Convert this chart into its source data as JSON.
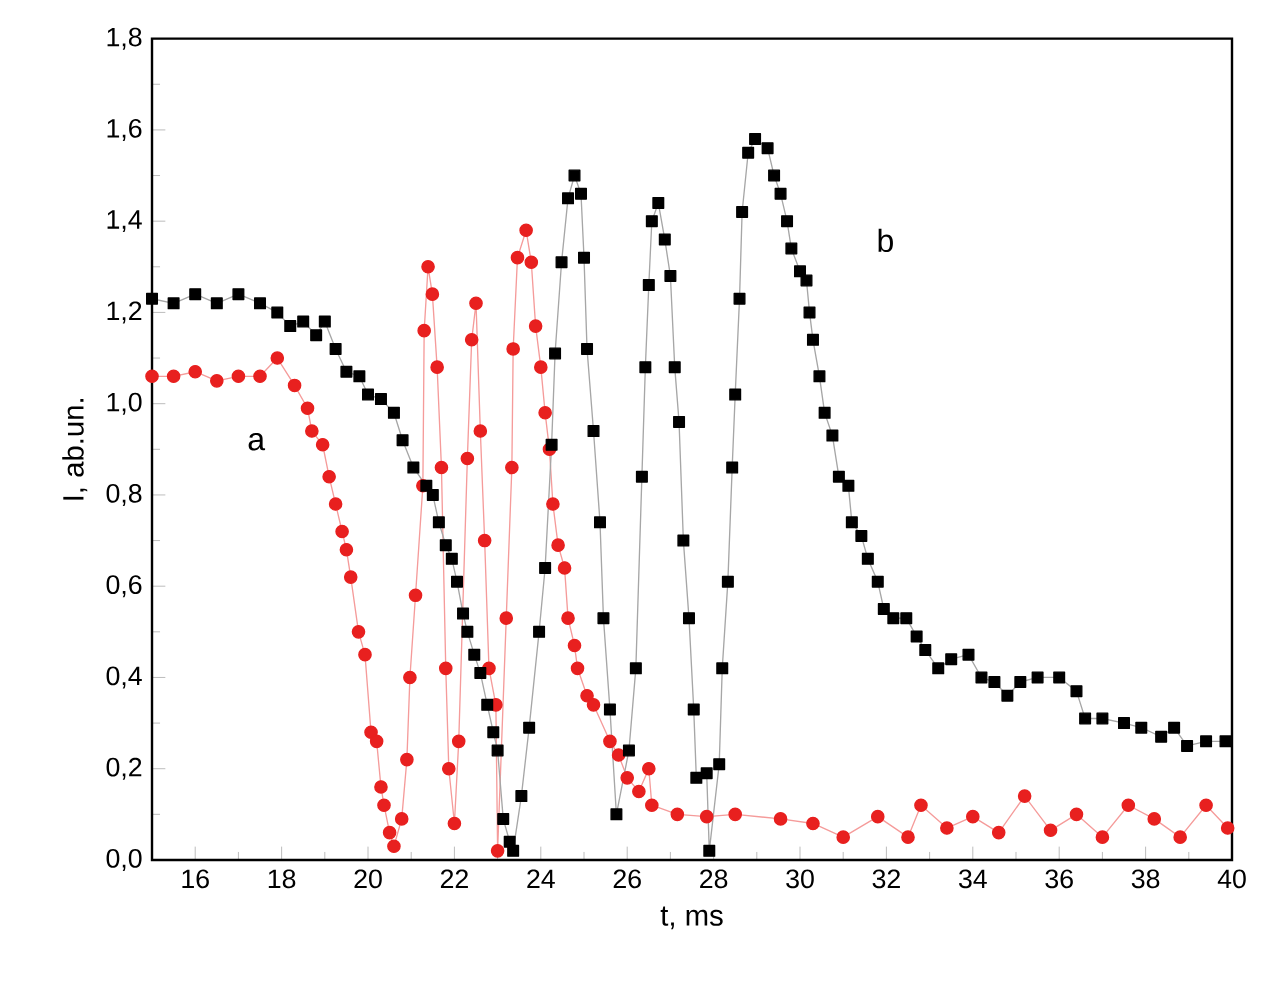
{
  "chart_data": {
    "type": "line",
    "xlabel": "t, ms",
    "ylabel": "I, ab.un.",
    "xlim": [
      15,
      40
    ],
    "ylim": [
      0,
      1.8
    ],
    "xticks": [
      16,
      18,
      20,
      22,
      24,
      26,
      28,
      30,
      32,
      34,
      36,
      38,
      40
    ],
    "yticks": [
      {
        "value": 0,
        "label": "0,0"
      },
      {
        "value": 0.2,
        "label": "0,2"
      },
      {
        "value": 0.4,
        "label": "0,4"
      },
      {
        "value": 0.6,
        "label": "0,6"
      },
      {
        "value": 0.8,
        "label": "0,8"
      },
      {
        "value": 1.0,
        "label": "1,0"
      },
      {
        "value": 1.2,
        "label": "1,2"
      },
      {
        "value": 1.4,
        "label": "1,4"
      },
      {
        "value": 1.6,
        "label": "1,6"
      },
      {
        "value": 1.8,
        "label": "1,8"
      }
    ],
    "legend": false,
    "grid": false,
    "series": [
      {
        "name": "a",
        "color": "#e8201f",
        "marker": "circle",
        "x": [
          15.0,
          15.5,
          16.0,
          16.5,
          17.0,
          17.5,
          17.9,
          18.3,
          18.6,
          18.7,
          18.95,
          19.1,
          19.25,
          19.4,
          19.5,
          19.6,
          19.78,
          19.93,
          20.07,
          20.2,
          20.3,
          20.37,
          20.5,
          20.6,
          20.78,
          20.9,
          20.97,
          21.1,
          21.27,
          21.3,
          21.39,
          21.49,
          21.6,
          21.7,
          21.8,
          21.87,
          22.0,
          22.1,
          22.3,
          22.4,
          22.5,
          22.6,
          22.7,
          22.8,
          22.96,
          23.0,
          23.2,
          23.33,
          23.36,
          23.46,
          23.66,
          23.78,
          23.88,
          24.0,
          24.1,
          24.2,
          24.28,
          24.4,
          24.55,
          24.63,
          24.78,
          24.85,
          25.07,
          25.22,
          25.6,
          25.8,
          26.0,
          26.27,
          26.5,
          26.57,
          27.16,
          27.84,
          28.5,
          29.55,
          30.3,
          31.0,
          31.8,
          32.5,
          32.8,
          33.4,
          34.0,
          34.6,
          35.2,
          35.8,
          36.4,
          37.0,
          37.6,
          38.2,
          38.8,
          39.4,
          39.9
        ],
        "values": [
          1.06,
          1.06,
          1.07,
          1.05,
          1.06,
          1.06,
          1.1,
          1.04,
          0.99,
          0.94,
          0.91,
          0.84,
          0.78,
          0.72,
          0.68,
          0.62,
          0.5,
          0.45,
          0.28,
          0.26,
          0.16,
          0.12,
          0.06,
          0.03,
          0.09,
          0.22,
          0.4,
          0.58,
          0.82,
          1.16,
          1.3,
          1.24,
          1.08,
          0.86,
          0.42,
          0.2,
          0.08,
          0.26,
          0.88,
          1.14,
          1.22,
          0.94,
          0.7,
          0.42,
          0.34,
          0.02,
          0.53,
          0.86,
          1.12,
          1.32,
          1.38,
          1.31,
          1.17,
          1.08,
          0.98,
          0.9,
          0.78,
          0.69,
          0.64,
          0.53,
          0.47,
          0.42,
          0.36,
          0.34,
          0.26,
          0.23,
          0.18,
          0.15,
          0.2,
          0.12,
          0.1,
          0.095,
          0.1,
          0.09,
          0.08,
          0.05,
          0.095,
          0.05,
          0.12,
          0.07,
          0.095,
          0.06,
          0.14,
          0.065,
          0.1,
          0.05,
          0.12,
          0.09,
          0.05,
          0.12,
          0.07
        ]
      },
      {
        "name": "b",
        "color": "#000000",
        "marker": "square",
        "x": [
          15.0,
          15.5,
          16.0,
          16.5,
          17.0,
          17.5,
          17.9,
          18.2,
          18.5,
          18.8,
          19.0,
          19.25,
          19.5,
          19.8,
          20.0,
          20.3,
          20.6,
          20.8,
          21.05,
          21.35,
          21.5,
          21.64,
          21.8,
          21.94,
          22.06,
          22.2,
          22.3,
          22.46,
          22.6,
          22.76,
          22.9,
          23.0,
          23.13,
          23.28,
          23.36,
          23.55,
          23.73,
          23.96,
          24.1,
          24.25,
          24.33,
          24.48,
          24.63,
          24.78,
          24.93,
          25.0,
          25.07,
          25.22,
          25.37,
          25.45,
          25.6,
          25.75,
          26.04,
          26.2,
          26.34,
          26.42,
          26.5,
          26.57,
          26.72,
          26.87,
          27.0,
          27.1,
          27.2,
          27.3,
          27.43,
          27.54,
          27.6,
          27.84,
          27.9,
          28.13,
          28.2,
          28.33,
          28.43,
          28.5,
          28.6,
          28.66,
          28.8,
          28.96,
          29.25,
          29.4,
          29.55,
          29.7,
          29.8,
          30.0,
          30.15,
          30.22,
          30.3,
          30.45,
          30.57,
          30.75,
          30.9,
          31.12,
          31.2,
          31.42,
          31.57,
          31.8,
          31.94,
          32.16,
          32.46,
          32.7,
          32.9,
          33.2,
          33.5,
          33.9,
          34.2,
          34.5,
          34.8,
          35.1,
          35.5,
          36.0,
          36.4,
          36.6,
          37.0,
          37.5,
          37.9,
          38.36,
          38.66,
          38.96,
          39.4,
          39.85
        ],
        "values": [
          1.23,
          1.22,
          1.24,
          1.22,
          1.24,
          1.22,
          1.2,
          1.17,
          1.18,
          1.15,
          1.18,
          1.12,
          1.07,
          1.06,
          1.02,
          1.01,
          0.98,
          0.92,
          0.86,
          0.82,
          0.8,
          0.74,
          0.69,
          0.66,
          0.61,
          0.54,
          0.5,
          0.45,
          0.41,
          0.34,
          0.28,
          0.24,
          0.09,
          0.04,
          0.02,
          0.14,
          0.29,
          0.5,
          0.64,
          0.91,
          1.11,
          1.31,
          1.45,
          1.5,
          1.46,
          1.32,
          1.12,
          0.94,
          0.74,
          0.53,
          0.33,
          0.1,
          0.24,
          0.42,
          0.84,
          1.08,
          1.26,
          1.4,
          1.44,
          1.36,
          1.28,
          1.08,
          0.96,
          0.7,
          0.53,
          0.33,
          0.18,
          0.19,
          0.02,
          0.21,
          0.42,
          0.61,
          0.86,
          1.02,
          1.23,
          1.42,
          1.55,
          1.58,
          1.56,
          1.5,
          1.46,
          1.4,
          1.34,
          1.29,
          1.27,
          1.2,
          1.14,
          1.06,
          0.98,
          0.93,
          0.84,
          0.82,
          0.74,
          0.71,
          0.66,
          0.61,
          0.55,
          0.53,
          0.53,
          0.49,
          0.46,
          0.42,
          0.44,
          0.45,
          0.4,
          0.39,
          0.36,
          0.39,
          0.4,
          0.4,
          0.37,
          0.31,
          0.31,
          0.3,
          0.29,
          0.27,
          0.29,
          0.25,
          0.26,
          0.26
        ]
      }
    ]
  }
}
